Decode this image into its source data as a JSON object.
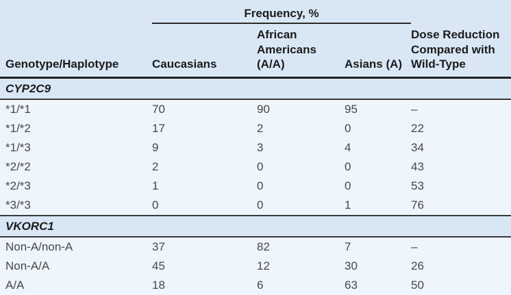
{
  "page": {
    "background": "#d9e7f5"
  },
  "table": {
    "spanner_label": "Frequency, %",
    "headers": {
      "genotype": "Genotype/Haplotype",
      "caucasians": "Caucasians",
      "african_americans": "African Americans (A/A)",
      "asians": "Asians (A)",
      "dose_reduction": "Dose Reduction Compared with Wild-Type"
    },
    "sections": [
      {
        "name": "CYP2C9",
        "rows": [
          {
            "label": "*1/*1",
            "values": [
              "70",
              "90",
              "95",
              "–"
            ]
          },
          {
            "label": "*1/*2",
            "values": [
              "17",
              "2",
              "0",
              "22"
            ]
          },
          {
            "label": "*1/*3",
            "values": [
              "9",
              "3",
              "4",
              "34"
            ]
          },
          {
            "label": "*2/*2",
            "values": [
              "2",
              "0",
              "0",
              "43"
            ]
          },
          {
            "label": "*2/*3",
            "values": [
              "1",
              "0",
              "0",
              "53"
            ]
          },
          {
            "label": "*3/*3",
            "values": [
              "0",
              "0",
              "1",
              "76"
            ]
          }
        ]
      },
      {
        "name": "VKORC1",
        "rows": [
          {
            "label": "Non-A/non-A",
            "values": [
              "37",
              "82",
              "7",
              "–"
            ]
          },
          {
            "label": "Non-A/A",
            "values": [
              "45",
              "12",
              "30",
              "26"
            ]
          },
          {
            "label": "A/A",
            "values": [
              "18",
              "6",
              "63",
              "50"
            ]
          }
        ]
      }
    ],
    "colors": {
      "header_bg": "#d9e7f5",
      "row_bg": "#eef5fc",
      "rule_heavy": "#1f1f1f",
      "rule_section": "#3a3a3a",
      "text_dark": "#1b1b1b",
      "text_body": "#474747"
    }
  }
}
